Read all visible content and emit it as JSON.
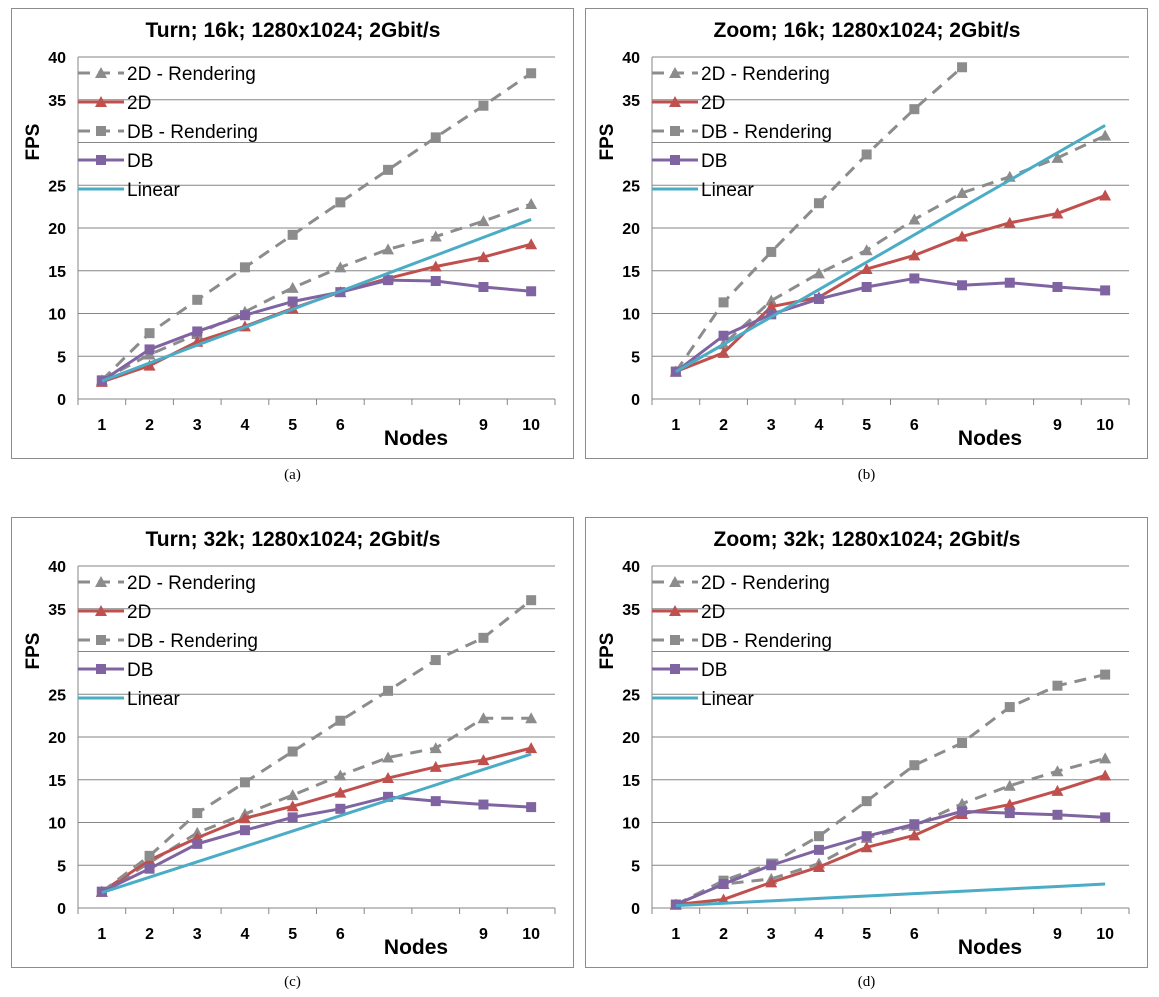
{
  "colors": {
    "2d_rendering": "#8c8c8c",
    "2d": "#c0504d",
    "db_rendering": "#8c8c8c",
    "db": "#8064a2",
    "linear": "#4bacc6",
    "grid": "#868686"
  },
  "legend": [
    "2D - Rendering",
    "2D",
    "DB - Rendering",
    "DB",
    "Linear"
  ],
  "chart_data": [
    {
      "type": "line",
      "caption": "(a)",
      "title": "Turn; 16k; 1280x1024; 2Gbit/s",
      "ylabel": "FPS",
      "xlabel": "Nodes",
      "ylim": [
        0,
        40
      ],
      "yticks": [
        "0",
        "5",
        "10",
        "15",
        "20",
        "25",
        "",
        "35",
        "40"
      ],
      "xticks": [
        "1",
        "2",
        "3",
        "4",
        "5",
        "6",
        "",
        "",
        "9",
        "10"
      ],
      "legend_position": "top-left",
      "series": [
        {
          "name": "2D - Rendering",
          "values": [
            2.2,
            5.2,
            7.6,
            10.2,
            13.0,
            15.4,
            17.5,
            19.0,
            20.8,
            22.8
          ]
        },
        {
          "name": "2D",
          "values": [
            2.0,
            3.9,
            6.7,
            8.5,
            10.6,
            12.5,
            14.1,
            15.5,
            16.6,
            18.1
          ]
        },
        {
          "name": "DB - Rendering",
          "values": [
            2.2,
            7.7,
            11.6,
            15.4,
            19.2,
            23.0,
            26.8,
            30.6,
            34.3,
            38.1
          ]
        },
        {
          "name": "DB",
          "values": [
            2.1,
            5.8,
            7.9,
            9.8,
            11.4,
            12.5,
            13.9,
            13.8,
            13.1,
            12.6
          ]
        },
        {
          "name": "Linear",
          "values": [
            2.1,
            4.2,
            6.3,
            8.4,
            10.5,
            12.6,
            14.7,
            16.8,
            18.9,
            21.0
          ]
        }
      ]
    },
    {
      "type": "line",
      "caption": "(b)",
      "title": "Zoom; 16k; 1280x1024; 2Gbit/s",
      "ylabel": "FPS",
      "xlabel": "Nodes",
      "ylim": [
        0,
        40
      ],
      "yticks": [
        "0",
        "5",
        "10",
        "15",
        "20",
        "25",
        "",
        "35",
        "40"
      ],
      "xticks": [
        "1",
        "2",
        "3",
        "4",
        "5",
        "6",
        "",
        "",
        "9",
        "10"
      ],
      "legend_position": "top-left",
      "series": [
        {
          "name": "2D - Rendering",
          "values": [
            3.2,
            6.4,
            11.5,
            14.7,
            17.4,
            21.0,
            24.1,
            26.0,
            28.2,
            30.8
          ]
        },
        {
          "name": "2D",
          "values": [
            3.2,
            5.4,
            10.8,
            11.9,
            15.2,
            16.8,
            19.0,
            20.6,
            21.7,
            23.8
          ]
        },
        {
          "name": "DB - Rendering",
          "values": [
            3.2,
            11.3,
            17.2,
            22.9,
            28.6,
            33.9,
            38.8,
            null,
            null,
            null
          ]
        },
        {
          "name": "DB",
          "values": [
            3.2,
            7.4,
            9.9,
            11.7,
            13.1,
            14.1,
            13.3,
            13.6,
            13.1,
            12.7
          ]
        },
        {
          "name": "Linear",
          "values": [
            3.2,
            6.4,
            9.6,
            12.8,
            16.0,
            19.2,
            22.4,
            25.6,
            28.8,
            32.0
          ]
        }
      ]
    },
    {
      "type": "line",
      "caption": "(c)",
      "title": "Turn; 32k; 1280x1024; 2Gbit/s",
      "ylabel": "FPS",
      "xlabel": "Nodes",
      "ylim": [
        0,
        40
      ],
      "yticks": [
        "0",
        "5",
        "10",
        "15",
        "20",
        "25",
        "",
        "35",
        "40"
      ],
      "xticks": [
        "1",
        "2",
        "3",
        "4",
        "5",
        "6",
        "",
        "",
        "9",
        "10"
      ],
      "legend_position": "top-left",
      "series": [
        {
          "name": "2D - Rendering",
          "values": [
            1.9,
            5.3,
            8.8,
            11.0,
            13.2,
            15.5,
            17.6,
            18.7,
            22.2,
            22.2
          ]
        },
        {
          "name": "2D",
          "values": [
            1.9,
            5.6,
            8.2,
            10.5,
            11.9,
            13.5,
            15.2,
            16.5,
            17.3,
            18.7
          ]
        },
        {
          "name": "DB - Rendering",
          "values": [
            1.9,
            6.1,
            11.1,
            14.7,
            18.3,
            21.9,
            25.4,
            29.0,
            31.6,
            36.0
          ]
        },
        {
          "name": "DB",
          "values": [
            1.9,
            4.6,
            7.5,
            9.1,
            10.6,
            11.6,
            13.0,
            12.5,
            12.1,
            11.8
          ]
        },
        {
          "name": "Linear",
          "values": [
            1.8,
            3.6,
            5.4,
            7.2,
            9.0,
            10.8,
            12.6,
            14.4,
            16.2,
            18.0
          ]
        }
      ]
    },
    {
      "type": "line",
      "caption": "(d)",
      "title": "Zoom; 32k; 1280x1024; 2Gbit/s",
      "ylabel": "FPS",
      "xlabel": "Nodes",
      "ylim": [
        0,
        40
      ],
      "yticks": [
        "0",
        "5",
        "10",
        "15",
        "20",
        "25",
        "",
        "35",
        "40"
      ],
      "xticks": [
        "1",
        "2",
        "3",
        "4",
        "5",
        "6",
        "",
        "",
        "9",
        "10"
      ],
      "legend_position": "top-left",
      "series": [
        {
          "name": "2D - Rendering",
          "values": [
            0.4,
            2.8,
            3.4,
            5.2,
            8.2,
            9.6,
            12.2,
            14.3,
            16.0,
            17.5
          ]
        },
        {
          "name": "2D",
          "values": [
            0.4,
            1.0,
            3.0,
            4.8,
            7.1,
            8.5,
            11.0,
            12.1,
            13.7,
            15.5
          ]
        },
        {
          "name": "DB - Rendering",
          "values": [
            0.4,
            3.2,
            5.2,
            8.4,
            12.5,
            16.7,
            19.3,
            23.5,
            26.0,
            27.3
          ]
        },
        {
          "name": "DB",
          "values": [
            0.4,
            2.8,
            5.0,
            6.8,
            8.4,
            9.8,
            11.3,
            11.1,
            10.9,
            10.6
          ]
        },
        {
          "name": "Linear",
          "values": [
            0.28,
            0.56,
            0.84,
            1.12,
            1.4,
            1.68,
            1.96,
            2.24,
            2.52,
            2.8
          ]
        }
      ]
    }
  ]
}
